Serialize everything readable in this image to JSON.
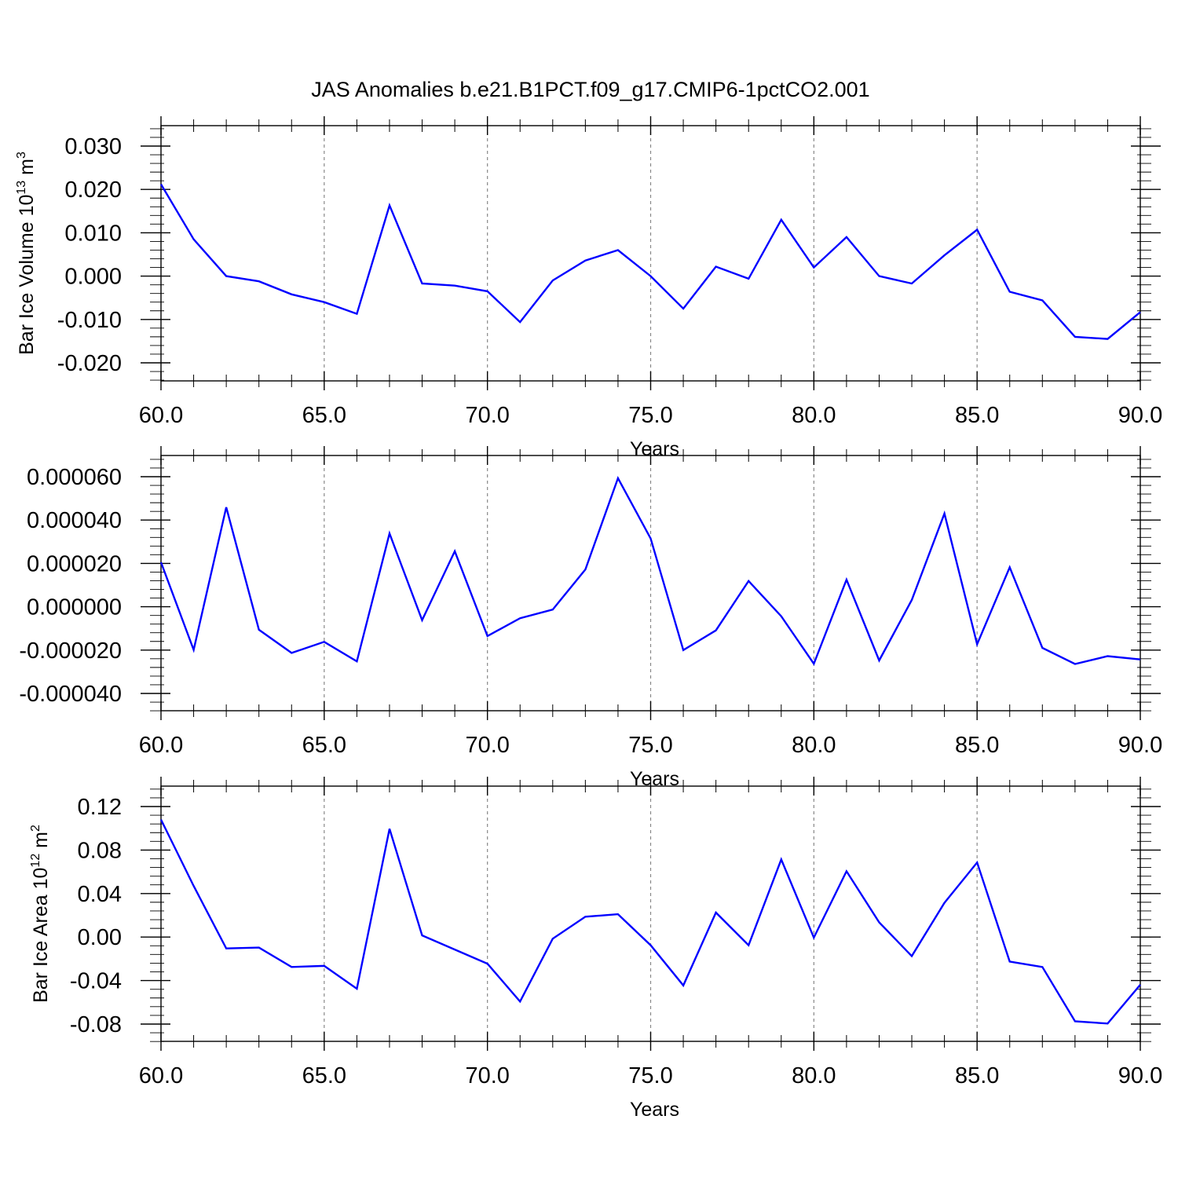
{
  "title": "JAS Anomalies b.e21.B1PCT.f09_g17.CMIP6-1pctCO2.001",
  "colors": {
    "line": "#0000ff",
    "axis": "#000000",
    "grid": "#888888"
  },
  "chart_data": [
    {
      "type": "line",
      "xlabel": "Years",
      "ylabel": "Bar Ice Volume 10",
      "ylabel_sup": "13",
      "ylabel_unit": " m",
      "ylabel_unit_sup": "3",
      "xlim": [
        60,
        90
      ],
      "ylim": [
        -0.02,
        0.03
      ],
      "x_ticks": [
        60,
        65,
        70,
        75,
        80,
        85,
        90
      ],
      "x_tick_labels": [
        "60.0",
        "65.0",
        "70.0",
        "75.0",
        "80.0",
        "85.0",
        "90.0"
      ],
      "y_ticks": [
        0.03,
        0.02,
        0.01,
        0.0,
        -0.01,
        -0.02
      ],
      "y_tick_labels": [
        "0.030",
        "0.020",
        "0.010",
        "0.000",
        "-0.010",
        "-0.020"
      ],
      "grid": "x-dashed",
      "x": [
        60,
        61,
        62,
        63,
        64,
        65,
        66,
        67,
        68,
        69,
        70,
        71,
        72,
        73,
        74,
        75,
        76,
        77,
        78,
        79,
        80,
        81,
        82,
        83,
        84,
        85,
        86,
        87,
        88,
        89,
        90
      ],
      "values": [
        0.0212,
        0.0085,
        0.0,
        -0.0012,
        -0.0042,
        -0.006,
        -0.0087,
        0.0163,
        -0.0017,
        -0.0022,
        -0.0035,
        -0.0106,
        -0.001,
        0.0036,
        0.006,
        0.0,
        -0.0075,
        0.0022,
        -0.0006,
        0.013,
        0.002,
        0.009,
        0.0,
        -0.0017,
        0.0048,
        0.0107,
        -0.0036,
        -0.0056,
        -0.014,
        -0.0145,
        -0.0083
      ]
    },
    {
      "type": "line",
      "xlabel": "Years",
      "ylabel": "",
      "xlim": [
        60,
        90
      ],
      "ylim": [
        -4e-05,
        6e-05
      ],
      "x_ticks": [
        60,
        65,
        70,
        75,
        80,
        85,
        90
      ],
      "x_tick_labels": [
        "60.0",
        "65.0",
        "70.0",
        "75.0",
        "80.0",
        "85.0",
        "90.0"
      ],
      "y_ticks": [
        6e-05,
        4e-05,
        2e-05,
        0.0,
        -2e-05,
        -4e-05
      ],
      "y_tick_labels": [
        "0.000060",
        "0.000040",
        "0.000020",
        "0.000000",
        "-0.000020",
        "-0.000040"
      ],
      "grid": "x-dashed",
      "x": [
        60,
        61,
        62,
        63,
        64,
        65,
        66,
        67,
        68,
        69,
        70,
        71,
        72,
        73,
        74,
        75,
        76,
        77,
        78,
        79,
        80,
        81,
        82,
        83,
        84,
        85,
        86,
        87,
        88,
        89,
        90
      ],
      "values": [
        2.05e-05,
        -1.99e-05,
        4.59e-05,
        -1.06e-05,
        -2.13e-05,
        -1.62e-05,
        -2.52e-05,
        3.38e-05,
        -6.2e-06,
        2.56e-05,
        -1.35e-05,
        -5.3e-06,
        -1.3e-06,
        1.72e-05,
        5.93e-05,
        3.15e-05,
        -2e-05,
        -1.09e-05,
        1.19e-05,
        -4.4e-06,
        -2.63e-05,
        1.25e-05,
        -2.48e-05,
        3.1e-06,
        4.3e-05,
        -1.73e-05,
        1.82e-05,
        -1.9e-05,
        -2.64e-05,
        -2.28e-05,
        -2.43e-05
      ]
    },
    {
      "type": "line",
      "xlabel": "Years",
      "ylabel": "Bar Ice Area 10",
      "ylabel_sup": "12",
      "ylabel_unit": " m",
      "ylabel_unit_sup": "2",
      "xlim": [
        60,
        90
      ],
      "ylim": [
        -0.09,
        0.12
      ],
      "x_ticks": [
        60,
        65,
        70,
        75,
        80,
        85,
        90
      ],
      "x_tick_labels": [
        "60.0",
        "65.0",
        "70.0",
        "75.0",
        "80.0",
        "85.0",
        "90.0"
      ],
      "y_ticks": [
        0.12,
        0.08,
        0.04,
        0.0,
        -0.04,
        -0.08
      ],
      "y_tick_labels": [
        "0.12",
        "0.08",
        "0.04",
        "0.00",
        "-0.04",
        "-0.08"
      ],
      "grid": "x-dashed",
      "x": [
        60,
        61,
        62,
        63,
        64,
        65,
        66,
        67,
        68,
        69,
        70,
        71,
        72,
        73,
        74,
        75,
        76,
        77,
        78,
        79,
        80,
        81,
        82,
        83,
        84,
        85,
        86,
        87,
        88,
        89,
        90
      ],
      "values": [
        0.108,
        0.047,
        -0.0105,
        -0.0097,
        -0.0275,
        -0.0265,
        -0.0475,
        0.0995,
        0.0015,
        -0.0115,
        -0.0245,
        -0.0593,
        -0.0015,
        0.0187,
        0.021,
        -0.0075,
        -0.0445,
        0.0225,
        -0.0075,
        0.0713,
        -0.0005,
        0.0605,
        0.0135,
        -0.0175,
        0.0315,
        0.0685,
        -0.0225,
        -0.0275,
        -0.0775,
        -0.0795,
        -0.0438
      ]
    }
  ]
}
